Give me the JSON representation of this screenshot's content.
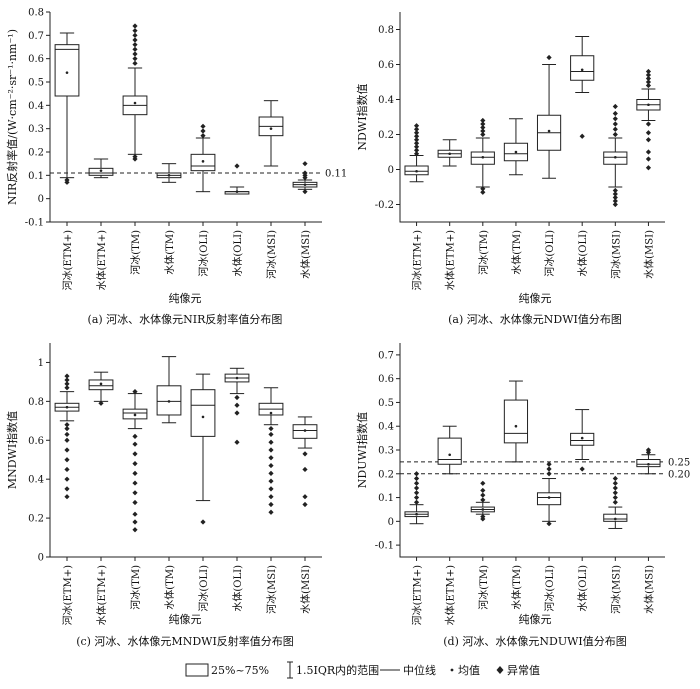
{
  "chart_data": [
    {
      "type": "boxplot",
      "panel": "a",
      "ylabel": "NIR反射率值/(W·cm⁻²·sr⁻¹·nm⁻¹)",
      "xlabel": "纯像元",
      "caption": "(a) 河冰、水体像元NIR反射率值分布图",
      "ylim": [
        -0.1,
        0.8
      ],
      "yticks": [
        -0.1,
        0,
        0.1,
        0.2,
        0.3,
        0.4,
        0.5,
        0.6,
        0.7,
        0.8
      ],
      "ref_lines": [
        {
          "value": 0.11,
          "label": "0.11"
        }
      ],
      "categories": [
        "河冰(ETM+)",
        "水体(ETM+)",
        "河冰(TM)",
        "水体(TM)",
        "河冰(OLI)",
        "水体(OLI)",
        "河冰(MSI)",
        "水体(MSI)"
      ],
      "boxes": [
        {
          "min": 0.09,
          "q1": 0.44,
          "median": 0.64,
          "q3": 0.66,
          "max": 0.71,
          "mean": 0.54,
          "outliers": [
            0.07,
            0.08
          ]
        },
        {
          "min": 0.09,
          "q1": 0.1,
          "median": 0.11,
          "q3": 0.13,
          "max": 0.17,
          "mean": 0.12,
          "outliers": []
        },
        {
          "min": 0.19,
          "q1": 0.36,
          "median": 0.4,
          "q3": 0.44,
          "max": 0.56,
          "mean": 0.41,
          "outliers": [
            0.17,
            0.18,
            0.58,
            0.6,
            0.62,
            0.64,
            0.66,
            0.68,
            0.7,
            0.72,
            0.74
          ]
        },
        {
          "min": 0.07,
          "q1": 0.09,
          "median": 0.1,
          "q3": 0.11,
          "max": 0.15,
          "mean": 0.1,
          "outliers": []
        },
        {
          "min": 0.03,
          "q1": 0.12,
          "median": 0.14,
          "q3": 0.19,
          "max": 0.26,
          "mean": 0.16,
          "outliers": [
            0.27,
            0.29,
            0.31
          ]
        },
        {
          "min": 0.02,
          "q1": 0.02,
          "median": 0.03,
          "q3": 0.03,
          "max": 0.05,
          "mean": 0.03,
          "outliers": [
            0.14
          ]
        },
        {
          "min": 0.14,
          "q1": 0.27,
          "median": 0.31,
          "q3": 0.35,
          "max": 0.42,
          "mean": 0.3,
          "outliers": []
        },
        {
          "min": 0.04,
          "q1": 0.05,
          "median": 0.06,
          "q3": 0.07,
          "max": 0.08,
          "mean": 0.06,
          "outliers": [
            0.03,
            0.09,
            0.1,
            0.11,
            0.15
          ]
        }
      ]
    },
    {
      "type": "boxplot",
      "panel": "b",
      "ylabel": "NDWI指数值",
      "xlabel": "纯像元",
      "caption": "(a) 河冰、水体像元NDWI值分布图",
      "ylim": [
        -0.3,
        0.9
      ],
      "yticks": [
        -0.2,
        0,
        0.2,
        0.4,
        0.6,
        0.8
      ],
      "ref_lines": [],
      "categories": [
        "河冰(ETM+)",
        "水体(ETM+)",
        "河冰(TM)",
        "水体(TM)",
        "河冰(OLI)",
        "水体(OLI)",
        "河冰(MSI)",
        "水体(MSI)"
      ],
      "boxes": [
        {
          "min": -0.07,
          "q1": -0.03,
          "median": -0.01,
          "q3": 0.02,
          "max": 0.08,
          "mean": -0.01,
          "outliers": [
            0.09,
            0.11,
            0.13,
            0.15,
            0.17,
            0.19,
            0.21,
            0.23,
            0.25
          ]
        },
        {
          "min": 0.02,
          "q1": 0.07,
          "median": 0.09,
          "q3": 0.11,
          "max": 0.17,
          "mean": 0.09,
          "outliers": []
        },
        {
          "min": -0.1,
          "q1": 0.03,
          "median": 0.07,
          "q3": 0.1,
          "max": 0.18,
          "mean": 0.07,
          "outliers": [
            -0.13,
            -0.11,
            0.2,
            0.22,
            0.24,
            0.26,
            0.28
          ]
        },
        {
          "min": -0.03,
          "q1": 0.05,
          "median": 0.09,
          "q3": 0.15,
          "max": 0.29,
          "mean": 0.1,
          "outliers": []
        },
        {
          "min": -0.05,
          "q1": 0.11,
          "median": 0.21,
          "q3": 0.31,
          "max": 0.6,
          "mean": 0.22,
          "outliers": [
            0.64
          ]
        },
        {
          "min": 0.44,
          "q1": 0.51,
          "median": 0.56,
          "q3": 0.65,
          "max": 0.76,
          "mean": 0.57,
          "outliers": [
            0.19
          ]
        },
        {
          "min": -0.1,
          "q1": 0.03,
          "median": 0.07,
          "q3": 0.1,
          "max": 0.18,
          "mean": 0.07,
          "outliers": [
            -0.2,
            -0.18,
            -0.16,
            -0.14,
            -0.12,
            0.2,
            0.23,
            0.26,
            0.29,
            0.32,
            0.36
          ]
        },
        {
          "min": 0.28,
          "q1": 0.34,
          "median": 0.37,
          "q3": 0.4,
          "max": 0.46,
          "mean": 0.37,
          "outliers": [
            0.01,
            0.06,
            0.1,
            0.17,
            0.21,
            0.26,
            0.48,
            0.5,
            0.52,
            0.54,
            0.56
          ]
        }
      ]
    },
    {
      "type": "boxplot",
      "panel": "c",
      "ylabel": "MNDWI指数值",
      "xlabel": "纯像元",
      "caption": "(c) 河冰、水体像元MNDWI反射率值分布图",
      "ylim": [
        0,
        1.1
      ],
      "yticks": [
        0,
        0.2,
        0.4,
        0.6,
        0.8,
        1.0
      ],
      "ref_lines": [],
      "categories": [
        "河冰(ETM+)",
        "水体(ETM+)",
        "河冰(TM)",
        "水体(TM)",
        "河冰(OLI)",
        "水体(OLI)",
        "河冰(MSI)",
        "水体(MSI)"
      ],
      "boxes": [
        {
          "min": 0.7,
          "q1": 0.75,
          "median": 0.77,
          "q3": 0.79,
          "max": 0.85,
          "mean": 0.77,
          "outliers": [
            0.31,
            0.35,
            0.4,
            0.45,
            0.5,
            0.55,
            0.6,
            0.63,
            0.66,
            0.68,
            0.87,
            0.89,
            0.91,
            0.93
          ]
        },
        {
          "min": 0.8,
          "q1": 0.86,
          "median": 0.88,
          "q3": 0.91,
          "max": 0.95,
          "mean": 0.89,
          "outliers": [
            0.79
          ]
        },
        {
          "min": 0.66,
          "q1": 0.71,
          "median": 0.74,
          "q3": 0.76,
          "max": 0.84,
          "mean": 0.73,
          "outliers": [
            0.14,
            0.18,
            0.22,
            0.28,
            0.33,
            0.38,
            0.43,
            0.48,
            0.53,
            0.58,
            0.62,
            0.85
          ]
        },
        {
          "min": 0.69,
          "q1": 0.73,
          "median": 0.8,
          "q3": 0.88,
          "max": 1.03,
          "mean": 0.8,
          "outliers": []
        },
        {
          "min": 0.29,
          "q1": 0.62,
          "median": 0.78,
          "q3": 0.86,
          "max": 0.94,
          "mean": 0.72,
          "outliers": [
            0.18
          ]
        },
        {
          "min": 0.84,
          "q1": 0.9,
          "median": 0.92,
          "q3": 0.94,
          "max": 0.97,
          "mean": 0.92,
          "outliers": [
            0.59,
            0.74,
            0.78,
            0.82
          ]
        },
        {
          "min": 0.68,
          "q1": 0.73,
          "median": 0.76,
          "q3": 0.79,
          "max": 0.87,
          "mean": 0.74,
          "outliers": [
            0.23,
            0.27,
            0.31,
            0.35,
            0.39,
            0.43,
            0.47,
            0.51,
            0.55,
            0.59,
            0.63,
            0.66
          ]
        },
        {
          "min": 0.56,
          "q1": 0.61,
          "median": 0.65,
          "q3": 0.68,
          "max": 0.72,
          "mean": 0.65,
          "outliers": [
            0.27,
            0.31,
            0.45,
            0.53
          ]
        }
      ]
    },
    {
      "type": "boxplot",
      "panel": "d",
      "ylabel": "NDUWI指数值",
      "xlabel": "纯像元",
      "caption": "(d) 河冰、水体像元NDUWI值分布图",
      "ylim": [
        -0.15,
        0.75
      ],
      "yticks": [
        -0.1,
        0,
        0.1,
        0.2,
        0.3,
        0.4,
        0.5,
        0.6,
        0.7
      ],
      "ref_lines": [
        {
          "value": 0.25,
          "label": "0.25"
        },
        {
          "value": 0.2,
          "label": "0.20"
        }
      ],
      "categories": [
        "河冰(ETM+)",
        "水体(ETM+)",
        "河冰(TM)",
        "水体(TM)",
        "河冰(OLI)",
        "水体(OLI)",
        "河冰(MSI)",
        "水体(MSI)"
      ],
      "boxes": [
        {
          "min": -0.01,
          "q1": 0.02,
          "median": 0.03,
          "q3": 0.04,
          "max": 0.07,
          "mean": 0.03,
          "outliers": [
            0.08,
            0.1,
            0.12,
            0.14,
            0.16,
            0.18,
            0.2
          ]
        },
        {
          "min": 0.2,
          "q1": 0.24,
          "median": 0.26,
          "q3": 0.35,
          "max": 0.4,
          "mean": 0.28,
          "outliers": []
        },
        {
          "min": 0.03,
          "q1": 0.04,
          "median": 0.05,
          "q3": 0.06,
          "max": 0.08,
          "mean": 0.05,
          "outliers": [
            0.01,
            0.02,
            0.09,
            0.11,
            0.13,
            0.16
          ]
        },
        {
          "min": 0.25,
          "q1": 0.33,
          "median": 0.37,
          "q3": 0.51,
          "max": 0.59,
          "mean": 0.4,
          "outliers": []
        },
        {
          "min": 0.0,
          "q1": 0.07,
          "median": 0.1,
          "q3": 0.12,
          "max": 0.18,
          "mean": 0.1,
          "outliers": [
            -0.01,
            0.2,
            0.22,
            0.24
          ]
        },
        {
          "min": 0.26,
          "q1": 0.32,
          "median": 0.34,
          "q3": 0.37,
          "max": 0.47,
          "mean": 0.35,
          "outliers": [
            0.22
          ]
        },
        {
          "min": -0.03,
          "q1": 0.0,
          "median": 0.01,
          "q3": 0.03,
          "max": 0.06,
          "mean": 0.01,
          "outliers": [
            0.08,
            0.1,
            0.12,
            0.14,
            0.16,
            0.18
          ]
        },
        {
          "min": 0.2,
          "q1": 0.23,
          "median": 0.24,
          "q3": 0.26,
          "max": 0.28,
          "mean": 0.24,
          "outliers": [
            0.29,
            0.3
          ]
        }
      ]
    }
  ],
  "legend": [
    {
      "label": "25%~75%",
      "symbol": "box"
    },
    {
      "label": "1.5IQR内的范围",
      "symbol": "whisker"
    },
    {
      "label": "中位线",
      "symbol": "line"
    },
    {
      "label": "均值",
      "symbol": "small-dot"
    },
    {
      "label": "异常值",
      "symbol": "diamond"
    }
  ]
}
